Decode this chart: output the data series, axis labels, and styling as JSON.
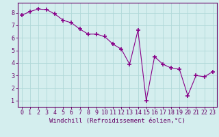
{
  "x": [
    0,
    1,
    2,
    3,
    4,
    5,
    6,
    7,
    8,
    9,
    10,
    11,
    12,
    13,
    14,
    15,
    16,
    17,
    18,
    19,
    20,
    21,
    22,
    23
  ],
  "y": [
    7.8,
    8.1,
    8.3,
    8.25,
    7.9,
    7.4,
    7.2,
    6.7,
    6.3,
    6.3,
    6.1,
    5.5,
    5.1,
    3.9,
    6.6,
    1.0,
    4.5,
    3.9,
    3.6,
    3.5,
    1.4,
    3.0,
    2.9,
    3.3
  ],
  "line_color": "#880088",
  "marker": "+",
  "marker_size": 4,
  "marker_linewidth": 1.2,
  "bg_color": "#d4eeee",
  "grid_color": "#b0d8d8",
  "ylabel_values": [
    1,
    2,
    3,
    4,
    5,
    6,
    7,
    8
  ],
  "xlabel": "Windchill (Refroidissement éolien,°C)",
  "xlim": [
    -0.5,
    23.5
  ],
  "ylim": [
    0.5,
    8.8
  ],
  "axis_color": "#660066",
  "font_size_label": 6.5,
  "font_size_tick": 6.0,
  "line_width": 0.8
}
